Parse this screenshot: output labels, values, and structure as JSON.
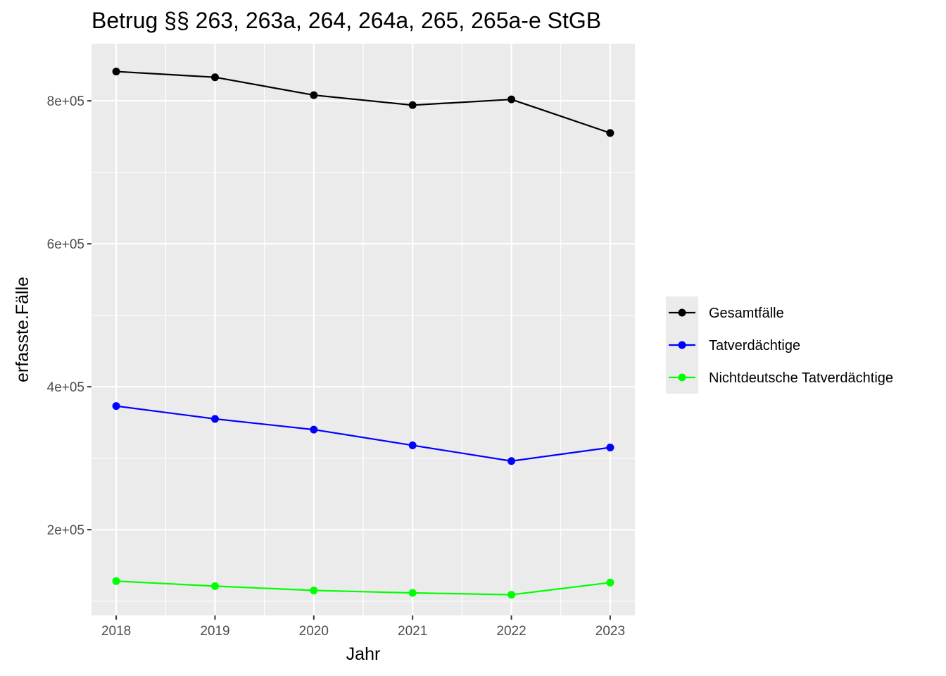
{
  "chart_data": {
    "type": "line",
    "title": "Betrug §§ 263, 263a, 264, 264a, 265, 265a-e StGB",
    "xlabel": "Jahr",
    "ylabel": "erfasste.Fälle",
    "x": [
      2018,
      2019,
      2020,
      2021,
      2022,
      2023
    ],
    "x_tick_labels": [
      "2018",
      "2019",
      "2020",
      "2021",
      "2022",
      "2023"
    ],
    "y_ticks": [
      200000,
      400000,
      600000,
      800000
    ],
    "y_tick_labels": [
      "2e+05",
      "4e+05",
      "6e+05",
      "8e+05"
    ],
    "xlim": [
      2017.75,
      2023.25
    ],
    "ylim": [
      80000,
      880000
    ],
    "grid": true,
    "legend_position": "right",
    "series": [
      {
        "name": "Gesamtfälle",
        "color": "#000000",
        "values": [
          841000,
          833000,
          808000,
          794000,
          802000,
          755000
        ]
      },
      {
        "name": "Tatverdächtige",
        "color": "#0000ff",
        "values": [
          373000,
          355000,
          340000,
          318000,
          296000,
          315000
        ]
      },
      {
        "name": "Nichtdeutsche Tatverdächtige",
        "color": "#00ff00",
        "values": [
          128000,
          121000,
          115000,
          111500,
          109000,
          126000
        ]
      }
    ]
  }
}
